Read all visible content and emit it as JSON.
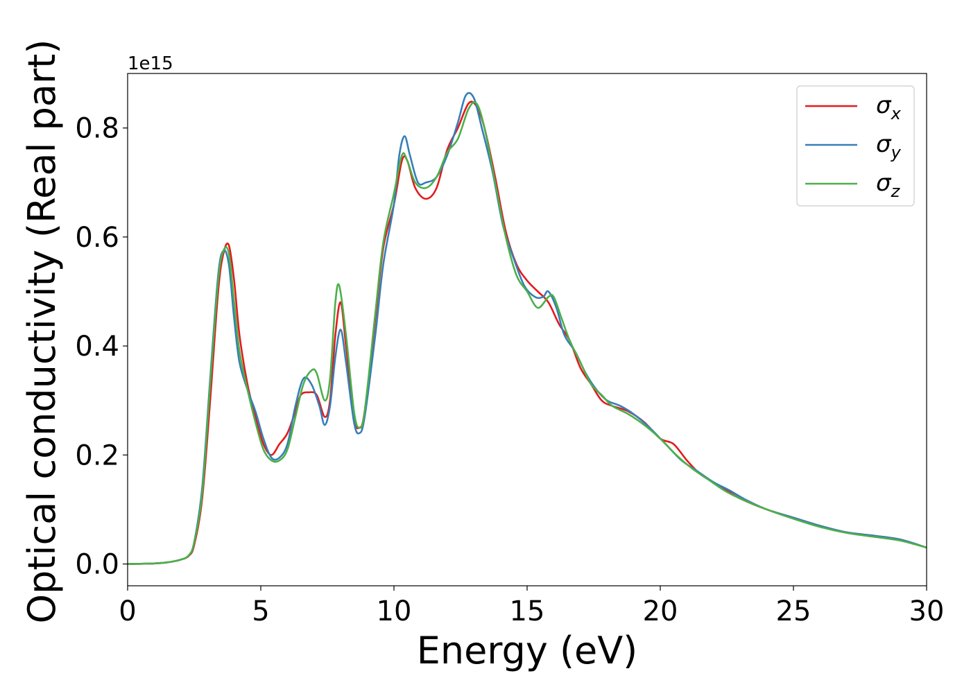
{
  "chart_data": {
    "type": "line",
    "xlabel": "Energy (eV)",
    "ylabel": "Optical conductivity (Real part)",
    "y_offset_label": "1e15",
    "xlim": [
      0,
      30
    ],
    "ylim": [
      -0.04,
      0.9
    ],
    "x_ticks": [
      "0",
      "5",
      "10",
      "15",
      "20",
      "25",
      "30"
    ],
    "y_ticks": [
      "0.0",
      "0.2",
      "0.4",
      "0.6",
      "0.8"
    ],
    "grid": false,
    "legend_position": "top-right",
    "series": [
      {
        "name": "σx",
        "legend_symbol": "σ",
        "legend_sub": "x",
        "color": "#e41a1c",
        "points": [
          [
            0,
            0
          ],
          [
            1,
            0.001
          ],
          [
            1.5,
            0.003
          ],
          [
            2,
            0.008
          ],
          [
            2.3,
            0.015
          ],
          [
            2.5,
            0.035
          ],
          [
            2.8,
            0.12
          ],
          [
            3.1,
            0.3
          ],
          [
            3.4,
            0.5
          ],
          [
            3.6,
            0.57
          ],
          [
            3.8,
            0.585
          ],
          [
            4.0,
            0.52
          ],
          [
            4.2,
            0.42
          ],
          [
            4.5,
            0.33
          ],
          [
            4.8,
            0.27
          ],
          [
            5.1,
            0.22
          ],
          [
            5.4,
            0.2
          ],
          [
            5.7,
            0.22
          ],
          [
            6.0,
            0.24
          ],
          [
            6.3,
            0.28
          ],
          [
            6.5,
            0.31
          ],
          [
            6.8,
            0.315
          ],
          [
            7.1,
            0.31
          ],
          [
            7.4,
            0.27
          ],
          [
            7.6,
            0.3
          ],
          [
            7.8,
            0.42
          ],
          [
            8.0,
            0.48
          ],
          [
            8.2,
            0.4
          ],
          [
            8.5,
            0.27
          ],
          [
            8.7,
            0.25
          ],
          [
            8.9,
            0.28
          ],
          [
            9.3,
            0.45
          ],
          [
            9.6,
            0.58
          ],
          [
            10.0,
            0.66
          ],
          [
            10.3,
            0.74
          ],
          [
            10.5,
            0.74
          ],
          [
            10.8,
            0.69
          ],
          [
            11.2,
            0.67
          ],
          [
            11.6,
            0.69
          ],
          [
            12.0,
            0.76
          ],
          [
            12.4,
            0.8
          ],
          [
            12.8,
            0.845
          ],
          [
            13.1,
            0.84
          ],
          [
            13.4,
            0.8
          ],
          [
            13.8,
            0.71
          ],
          [
            14.2,
            0.61
          ],
          [
            14.6,
            0.55
          ],
          [
            15.0,
            0.52
          ],
          [
            15.4,
            0.5
          ],
          [
            15.8,
            0.48
          ],
          [
            16.2,
            0.44
          ],
          [
            16.6,
            0.41
          ],
          [
            17.0,
            0.36
          ],
          [
            17.4,
            0.33
          ],
          [
            17.8,
            0.3
          ],
          [
            18.2,
            0.29
          ],
          [
            18.8,
            0.28
          ],
          [
            19.4,
            0.26
          ],
          [
            20.0,
            0.23
          ],
          [
            20.5,
            0.22
          ],
          [
            21.0,
            0.19
          ],
          [
            21.5,
            0.165
          ],
          [
            22.0,
            0.15
          ],
          [
            22.5,
            0.135
          ],
          [
            23.0,
            0.12
          ],
          [
            24.0,
            0.1
          ],
          [
            25.0,
            0.085
          ],
          [
            26.0,
            0.07
          ],
          [
            27.0,
            0.058
          ],
          [
            28.0,
            0.052
          ],
          [
            29.0,
            0.045
          ],
          [
            30.0,
            0.03
          ]
        ]
      },
      {
        "name": "σy",
        "legend_symbol": "σ",
        "legend_sub": "y",
        "color": "#377eb8",
        "points": [
          [
            0,
            0
          ],
          [
            1,
            0.001
          ],
          [
            1.5,
            0.003
          ],
          [
            2,
            0.008
          ],
          [
            2.3,
            0.016
          ],
          [
            2.5,
            0.04
          ],
          [
            2.8,
            0.14
          ],
          [
            3.1,
            0.34
          ],
          [
            3.4,
            0.53
          ],
          [
            3.6,
            0.575
          ],
          [
            3.8,
            0.55
          ],
          [
            4.0,
            0.45
          ],
          [
            4.2,
            0.37
          ],
          [
            4.5,
            0.32
          ],
          [
            4.8,
            0.28
          ],
          [
            5.1,
            0.23
          ],
          [
            5.4,
            0.195
          ],
          [
            5.7,
            0.195
          ],
          [
            6.0,
            0.22
          ],
          [
            6.3,
            0.29
          ],
          [
            6.6,
            0.34
          ],
          [
            6.9,
            0.33
          ],
          [
            7.2,
            0.29
          ],
          [
            7.4,
            0.255
          ],
          [
            7.6,
            0.29
          ],
          [
            7.8,
            0.38
          ],
          [
            8.0,
            0.43
          ],
          [
            8.2,
            0.37
          ],
          [
            8.5,
            0.26
          ],
          [
            8.7,
            0.24
          ],
          [
            8.9,
            0.27
          ],
          [
            9.3,
            0.42
          ],
          [
            9.6,
            0.55
          ],
          [
            10.0,
            0.66
          ],
          [
            10.2,
            0.75
          ],
          [
            10.4,
            0.785
          ],
          [
            10.6,
            0.75
          ],
          [
            10.9,
            0.7
          ],
          [
            11.2,
            0.7
          ],
          [
            11.6,
            0.71
          ],
          [
            12.0,
            0.75
          ],
          [
            12.4,
            0.81
          ],
          [
            12.7,
            0.86
          ],
          [
            13.0,
            0.855
          ],
          [
            13.3,
            0.8
          ],
          [
            13.7,
            0.72
          ],
          [
            14.1,
            0.62
          ],
          [
            14.5,
            0.56
          ],
          [
            14.9,
            0.51
          ],
          [
            15.3,
            0.49
          ],
          [
            15.6,
            0.49
          ],
          [
            15.8,
            0.5
          ],
          [
            16.1,
            0.47
          ],
          [
            16.4,
            0.42
          ],
          [
            16.8,
            0.39
          ],
          [
            17.2,
            0.35
          ],
          [
            17.6,
            0.32
          ],
          [
            18.0,
            0.3
          ],
          [
            18.5,
            0.29
          ],
          [
            19.0,
            0.275
          ],
          [
            19.6,
            0.25
          ],
          [
            20.2,
            0.22
          ],
          [
            20.8,
            0.19
          ],
          [
            21.4,
            0.17
          ],
          [
            22.0,
            0.15
          ],
          [
            22.6,
            0.135
          ],
          [
            23.2,
            0.118
          ],
          [
            24.0,
            0.1
          ],
          [
            25.0,
            0.085
          ],
          [
            26.0,
            0.07
          ],
          [
            27.0,
            0.058
          ],
          [
            28.0,
            0.052
          ],
          [
            29.0,
            0.045
          ],
          [
            30.0,
            0.03
          ]
        ]
      },
      {
        "name": "σz",
        "legend_symbol": "σ",
        "legend_sub": "z",
        "color": "#4daf4a",
        "points": [
          [
            0,
            0
          ],
          [
            1,
            0.001
          ],
          [
            1.5,
            0.003
          ],
          [
            2,
            0.008
          ],
          [
            2.3,
            0.016
          ],
          [
            2.5,
            0.04
          ],
          [
            2.8,
            0.13
          ],
          [
            3.1,
            0.33
          ],
          [
            3.4,
            0.52
          ],
          [
            3.6,
            0.575
          ],
          [
            3.8,
            0.57
          ],
          [
            4.0,
            0.48
          ],
          [
            4.2,
            0.39
          ],
          [
            4.5,
            0.32
          ],
          [
            4.8,
            0.26
          ],
          [
            5.1,
            0.21
          ],
          [
            5.4,
            0.19
          ],
          [
            5.7,
            0.19
          ],
          [
            6.0,
            0.21
          ],
          [
            6.3,
            0.27
          ],
          [
            6.6,
            0.33
          ],
          [
            6.9,
            0.355
          ],
          [
            7.1,
            0.35
          ],
          [
            7.4,
            0.3
          ],
          [
            7.6,
            0.34
          ],
          [
            7.8,
            0.48
          ],
          [
            7.95,
            0.51
          ],
          [
            8.2,
            0.42
          ],
          [
            8.5,
            0.28
          ],
          [
            8.7,
            0.25
          ],
          [
            8.9,
            0.28
          ],
          [
            9.3,
            0.46
          ],
          [
            9.6,
            0.59
          ],
          [
            10.0,
            0.68
          ],
          [
            10.3,
            0.75
          ],
          [
            10.5,
            0.74
          ],
          [
            10.8,
            0.7
          ],
          [
            11.2,
            0.69
          ],
          [
            11.6,
            0.71
          ],
          [
            12.0,
            0.755
          ],
          [
            12.4,
            0.78
          ],
          [
            12.8,
            0.835
          ],
          [
            13.1,
            0.845
          ],
          [
            13.4,
            0.8
          ],
          [
            13.8,
            0.7
          ],
          [
            14.2,
            0.6
          ],
          [
            14.6,
            0.53
          ],
          [
            15.0,
            0.5
          ],
          [
            15.4,
            0.47
          ],
          [
            15.8,
            0.49
          ],
          [
            16.0,
            0.49
          ],
          [
            16.3,
            0.45
          ],
          [
            16.6,
            0.41
          ],
          [
            17.0,
            0.37
          ],
          [
            17.4,
            0.33
          ],
          [
            17.8,
            0.31
          ],
          [
            18.2,
            0.29
          ],
          [
            18.8,
            0.275
          ],
          [
            19.4,
            0.255
          ],
          [
            20.0,
            0.23
          ],
          [
            20.6,
            0.2
          ],
          [
            21.2,
            0.175
          ],
          [
            21.8,
            0.155
          ],
          [
            22.4,
            0.135
          ],
          [
            23.0,
            0.12
          ],
          [
            24.0,
            0.1
          ],
          [
            25.0,
            0.083
          ],
          [
            26.0,
            0.068
          ],
          [
            27.0,
            0.057
          ],
          [
            28.0,
            0.05
          ],
          [
            29.0,
            0.043
          ],
          [
            30.0,
            0.03
          ]
        ]
      }
    ]
  }
}
